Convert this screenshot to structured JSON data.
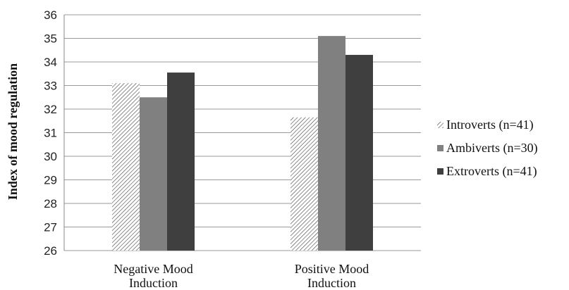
{
  "chart_data": {
    "type": "bar",
    "title": "",
    "xlabel": "",
    "ylabel": "Index of mood regulation",
    "ylim": [
      26,
      36
    ],
    "yticks": [
      26,
      27,
      28,
      29,
      30,
      31,
      32,
      33,
      34,
      35,
      36
    ],
    "grid": true,
    "legend_position": "right",
    "categories": [
      {
        "line1": "Negative Mood",
        "line2": "Induction"
      },
      {
        "line1": "Positive Mood",
        "line2": "Induction"
      }
    ],
    "series": [
      {
        "name": "Introverts (n=41)",
        "values": [
          33.1,
          31.65
        ],
        "fill": "hatch",
        "color": "#555555"
      },
      {
        "name": "Ambiverts (n=30)",
        "values": [
          32.5,
          35.1
        ],
        "fill": "solid",
        "color": "#808080"
      },
      {
        "name": "Extroverts (n=41)",
        "values": [
          33.55,
          34.3
        ],
        "fill": "solid",
        "color": "#3f3f3f"
      }
    ]
  }
}
